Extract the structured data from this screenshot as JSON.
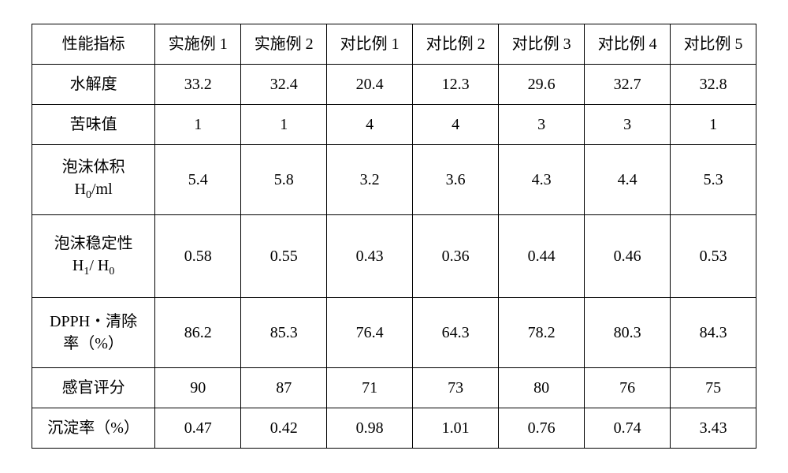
{
  "table": {
    "columns": [
      "性能指标",
      "实施例 1",
      "实施例 2",
      "对比例 1",
      "对比例 2",
      "对比例 3",
      "对比例 4",
      "对比例 5"
    ],
    "col_widths_pct": [
      17,
      11.86,
      11.86,
      11.86,
      11.86,
      11.86,
      11.86,
      11.84
    ],
    "rows": [
      {
        "label_html": "水解度",
        "height": "small",
        "values": [
          "33.2",
          "32.4",
          "20.4",
          "12.3",
          "29.6",
          "32.7",
          "32.8"
        ]
      },
      {
        "label_html": "苦味值",
        "height": "small",
        "values": [
          "1",
          "1",
          "4",
          "4",
          "3",
          "3",
          "1"
        ]
      },
      {
        "label_html": "泡沫体积<br>H<span class=\"sub\">0</span>/ml",
        "height": "med",
        "values": [
          "5.4",
          "5.8",
          "3.2",
          "3.6",
          "4.3",
          "4.4",
          "5.3"
        ]
      },
      {
        "label_html": "泡沫稳定性<br>H<span class=\"sub\">1</span>/ H<span class=\"sub\">0</span>",
        "height": "large",
        "values": [
          "0.58",
          "0.55",
          "0.43",
          "0.36",
          "0.44",
          "0.46",
          "0.53"
        ]
      },
      {
        "label_html": "DPPH・清除<br>率（%）",
        "height": "med",
        "values": [
          "86.2",
          "85.3",
          "76.4",
          "64.3",
          "78.2",
          "80.3",
          "84.3"
        ]
      },
      {
        "label_html": "感官评分",
        "height": "small",
        "values": [
          "90",
          "87",
          "71",
          "73",
          "80",
          "76",
          "75"
        ]
      },
      {
        "label_html": "沉淀率（%）",
        "height": "small",
        "values": [
          "0.47",
          "0.42",
          "0.98",
          "1.01",
          "0.76",
          "0.74",
          "3.43"
        ]
      }
    ],
    "border_color": "#000000",
    "background_color": "#ffffff",
    "font_family": "SimSun / Times New Roman",
    "body_fontsize_pt": 15,
    "subscript_fontsize_pt": 10
  }
}
